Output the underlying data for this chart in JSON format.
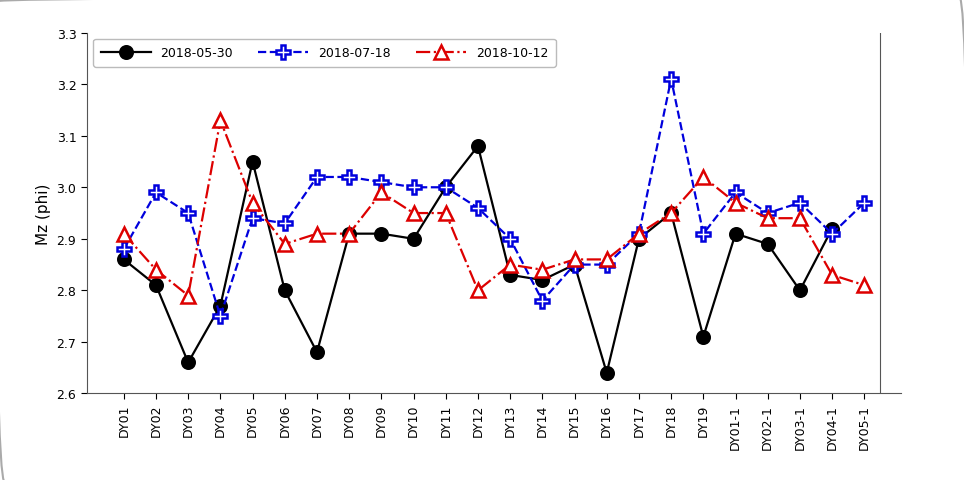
{
  "x_labels": [
    "DY01",
    "DY02",
    "DY03",
    "DY04",
    "DY05",
    "DY06",
    "DY07",
    "DY08",
    "DY09",
    "DY10",
    "DY11",
    "DY12",
    "DY13",
    "DY14",
    "DY15",
    "DY16",
    "DY17",
    "DY18",
    "DY19",
    "DY01-1",
    "DY02-1",
    "DY03-1",
    "DY04-1",
    "DY05-1"
  ],
  "series": [
    {
      "label": "2018-05-30",
      "color": "#000000",
      "linestyle": "-",
      "marker": "o",
      "markersize": 9,
      "markerfacecolor": "#000000",
      "markeredgecolor": "#000000",
      "linewidth": 1.6,
      "values": [
        2.86,
        2.81,
        2.66,
        2.77,
        3.05,
        2.8,
        2.68,
        2.91,
        2.91,
        2.9,
        3.0,
        3.08,
        2.83,
        2.82,
        2.85,
        2.64,
        2.9,
        2.95,
        2.71,
        2.91,
        2.89,
        2.8,
        2.92,
        null
      ]
    },
    {
      "label": "2018-07-18",
      "color": "#0000dd",
      "linestyle": "--",
      "marker": "P",
      "markersize": 10,
      "markerfacecolor": "#ffffff",
      "markeredgecolor": "#0000dd",
      "linewidth": 1.6,
      "values": [
        2.88,
        2.99,
        2.95,
        2.75,
        2.94,
        2.93,
        3.02,
        3.02,
        3.01,
        3.0,
        3.0,
        2.96,
        2.9,
        2.78,
        2.85,
        2.85,
        2.91,
        3.21,
        2.91,
        2.99,
        2.95,
        2.97,
        2.91,
        2.97
      ]
    },
    {
      "label": "2018-10-12",
      "color": "#dd0000",
      "linestyle": "-.",
      "marker": "^",
      "markersize": 10,
      "markerfacecolor": "#ffffff",
      "markeredgecolor": "#dd0000",
      "linewidth": 1.6,
      "values": [
        2.91,
        2.84,
        2.79,
        3.13,
        2.97,
        2.89,
        2.91,
        2.91,
        2.99,
        2.95,
        2.95,
        2.8,
        2.85,
        2.84,
        2.86,
        2.86,
        2.91,
        2.95,
        3.02,
        2.97,
        2.94,
        2.94,
        2.83,
        2.81
      ]
    }
  ],
  "ylabel": "Mz (phi)",
  "ylim": [
    2.6,
    3.3
  ],
  "yticks": [
    2.6,
    2.7,
    2.8,
    2.9,
    3.0,
    3.1,
    3.2,
    3.3
  ],
  "background_color": "#ffffff",
  "outer_frame_color": "#aaaaaa",
  "tick_fontsize": 9,
  "label_fontsize": 11,
  "legend_fontsize": 9
}
